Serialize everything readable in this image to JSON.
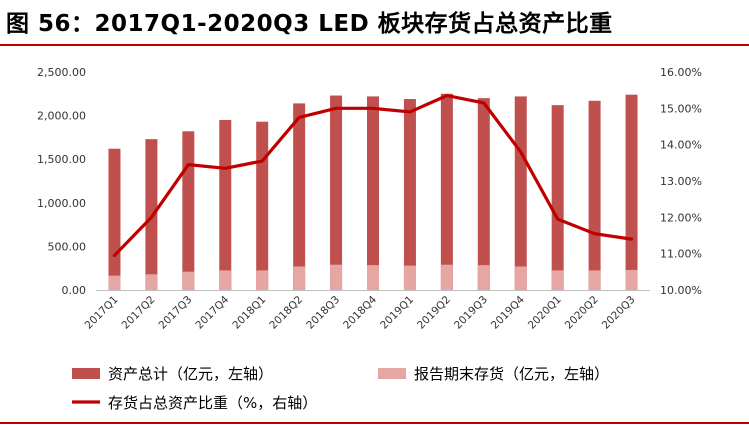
{
  "figure": {
    "title": "图 56：2017Q1-2020Q3 LED 板块存货占总资产比重"
  },
  "chart_data": {
    "type": "bar",
    "categories": [
      "2017Q1",
      "2017Q2",
      "2017Q3",
      "2017Q4",
      "2018Q1",
      "2018Q2",
      "2018Q3",
      "2018Q4",
      "2019Q1",
      "2019Q2",
      "2019Q3",
      "2019Q4",
      "2020Q1",
      "2020Q2",
      "2020Q3"
    ],
    "series": [
      {
        "name": "资产总计（亿元，左轴）",
        "type": "bar",
        "axis": "left",
        "color": "#c0504d",
        "values": [
          1620,
          1730,
          1820,
          1950,
          1930,
          2140,
          2230,
          2220,
          2190,
          2250,
          2200,
          2220,
          2120,
          2170,
          2240
        ]
      },
      {
        "name": "报告期末存货（亿元，左轴）",
        "type": "bar",
        "axis": "left",
        "color": "#e6a6a4",
        "values": [
          165,
          180,
          210,
          225,
          225,
          270,
          290,
          285,
          280,
          290,
          285,
          270,
          225,
          225,
          230
        ]
      },
      {
        "name": "存货占总资产比重（%，右轴）",
        "type": "line",
        "axis": "right",
        "color": "#c00000",
        "values": [
          10.95,
          12.0,
          13.45,
          13.35,
          13.55,
          14.75,
          15.0,
          15.0,
          14.9,
          15.35,
          15.15,
          13.8,
          11.95,
          11.55,
          11.4
        ]
      }
    ],
    "y_left": {
      "lim": [
        0,
        2500
      ],
      "ticks": [
        "0.00",
        "500.00",
        "1,000.00",
        "1,500.00",
        "2,000.00",
        "2,500.00"
      ]
    },
    "y_right": {
      "lim": [
        10,
        16
      ],
      "ticks": [
        "10.00%",
        "11.00%",
        "12.00%",
        "13.00%",
        "14.00%",
        "15.00%",
        "16.00%"
      ]
    },
    "grid": false,
    "legend_position": "bottom"
  }
}
